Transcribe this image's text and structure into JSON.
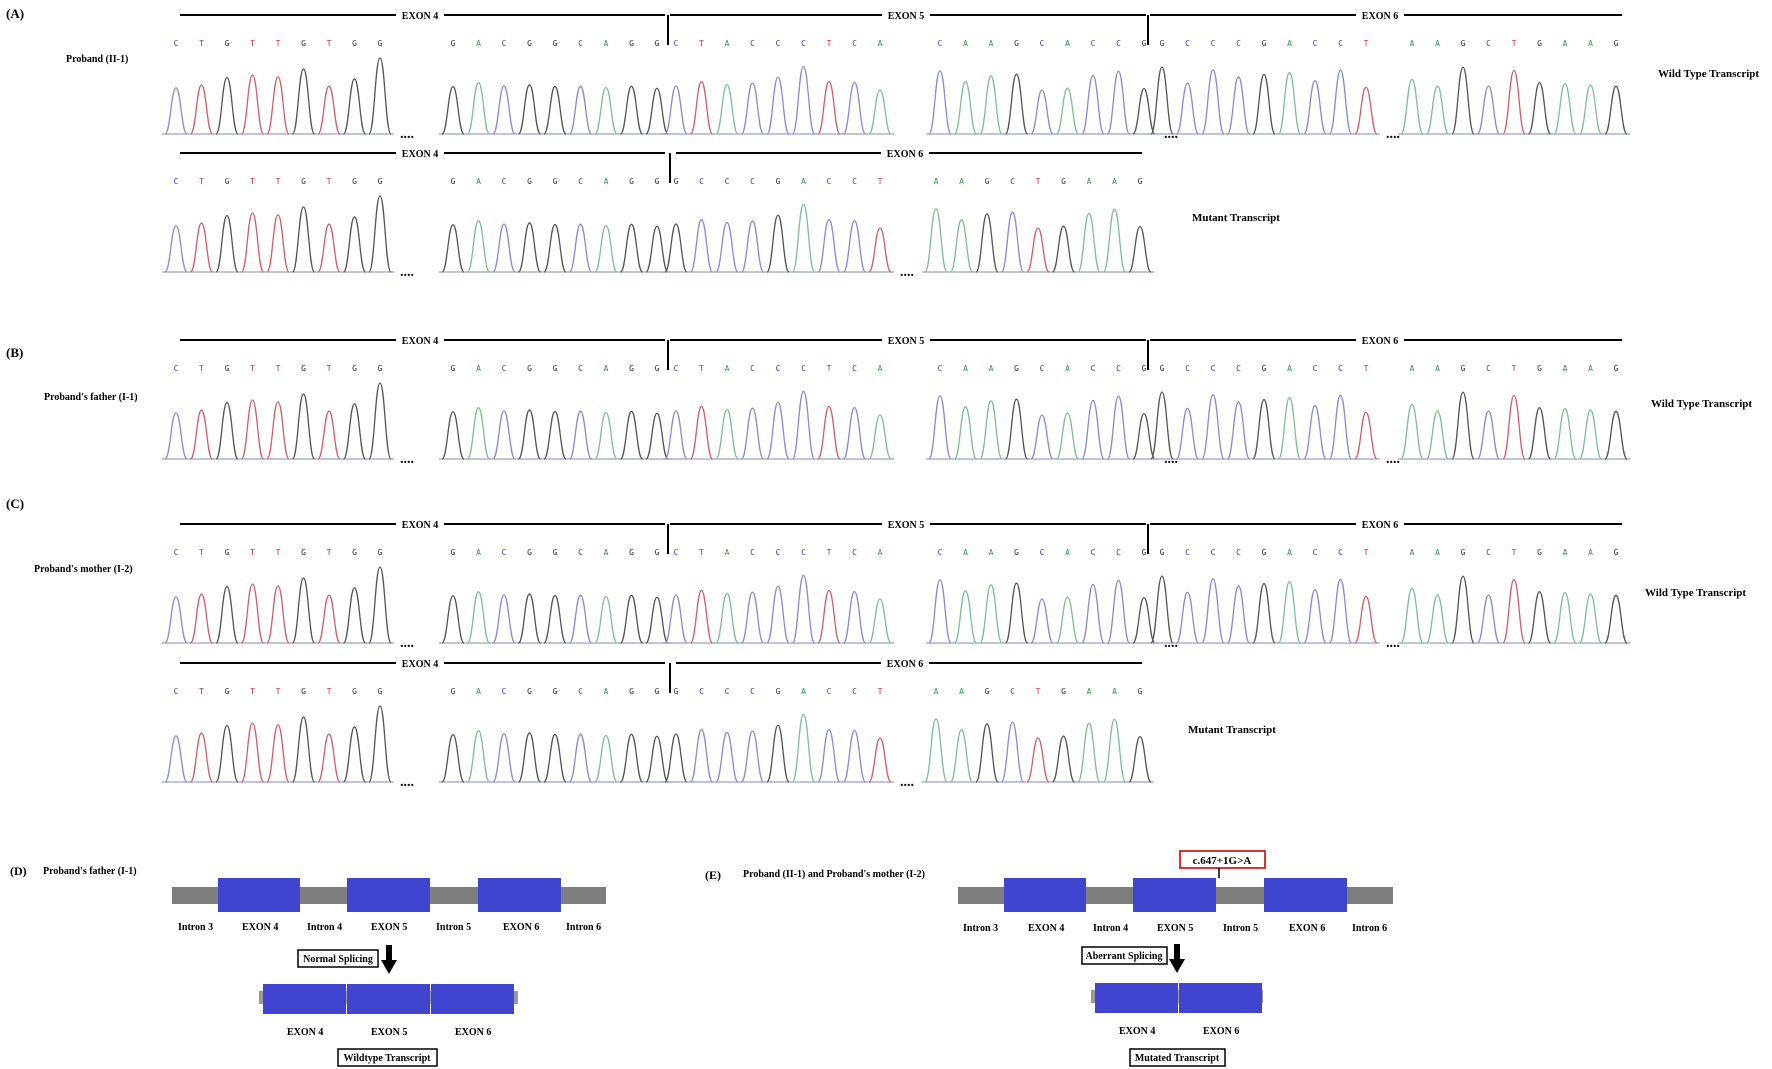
{
  "colors": {
    "A": "#2e9a4e",
    "C": "#3a3ad0",
    "G": "#333333",
    "T": "#d0303a",
    "trace_A": "#7fbf95",
    "trace_C": "#8a8ad8",
    "trace_G": "#555555",
    "trace_T": "#d06068",
    "exon_fill": "#3f45cf",
    "intron_fill": "#7d7d7d",
    "mutation_box": "#d02020",
    "baseline": "#9aa0c8"
  },
  "panels": [
    {
      "id": "A",
      "panel_label": "(A)",
      "sample_label": "Proband (II-1)",
      "rows": [
        {
          "type": "wt",
          "transcript_label": "Wild Type Transcript"
        },
        {
          "type": "mut",
          "transcript_label": "Mutant Transcript"
        }
      ]
    },
    {
      "id": "B",
      "panel_label": "(B)",
      "sample_label": "Proband's father (I-1)",
      "rows": [
        {
          "type": "wt",
          "transcript_label": "Wild Type Transcript"
        }
      ]
    },
    {
      "id": "C",
      "panel_label": "(C)",
      "sample_label": "Proband's mother (I-2)",
      "rows": [
        {
          "type": "wt",
          "transcript_label": "Wild Type Transcript"
        },
        {
          "type": "mut",
          "transcript_label": "Mutant Transcript"
        }
      ]
    }
  ],
  "exon_labels": {
    "exon4": "EXON 4",
    "exon5": "EXON 5",
    "exon6": "EXON 6"
  },
  "sequences": {
    "wt_groups": [
      "CTGTTGTGG",
      "GACGGCAGG",
      "CTACCCTCA",
      "CAAGCACCG",
      "GCCCGACCT",
      "AAGCTGAAG"
    ],
    "mut_groups": [
      "CTGTTGTGG",
      "GACGGCAGG",
      "GCCCGACCT",
      "AAGCTGAAG"
    ]
  },
  "ellipsis": "....",
  "diagram_D": {
    "panel_label": "(D)",
    "sample_label": "Proband's father (I-1)",
    "exons": [
      "EXON 4",
      "EXON 5",
      "EXON 6"
    ],
    "introns": [
      "Intron 3",
      "Intron 4",
      "Intron 5",
      "Intron 6"
    ],
    "splicing_label": "Normal Splicing",
    "transcript_exons": [
      "EXON 4",
      "EXON 5",
      "EXON 6"
    ],
    "transcript_label": "Wildtype Transcript"
  },
  "diagram_E": {
    "panel_label": "(E)",
    "sample_label": "Proband (II-1) and Proband's mother (I-2)",
    "mutation": "c.647+1G>A",
    "exons": [
      "EXON 4",
      "EXON 5",
      "EXON 6"
    ],
    "introns": [
      "Intron 3",
      "Intron 4",
      "Intron 5",
      "Intron 6"
    ],
    "splicing_label": "Aberrant Splicing",
    "transcript_exons": [
      "EXON 4",
      "EXON 6"
    ],
    "transcript_label": "Mutated Transcript"
  }
}
